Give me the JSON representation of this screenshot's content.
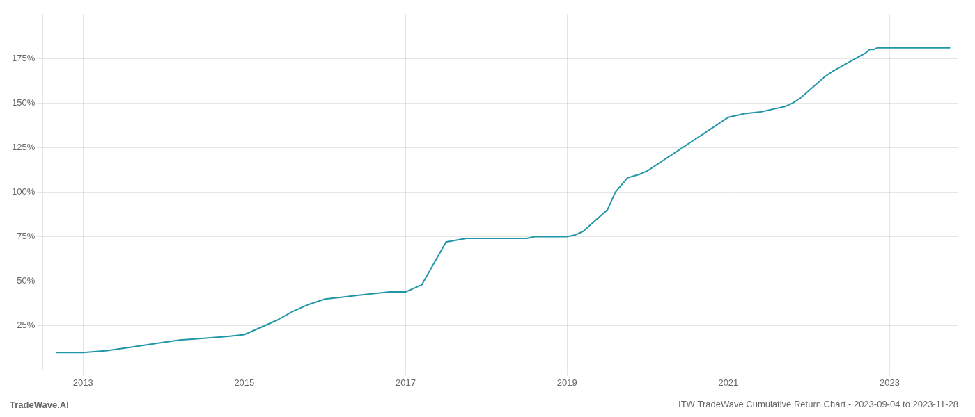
{
  "chart_data": {
    "type": "line",
    "title": "ITW TradeWave Cumulative Return Chart - 2023-09-04 to 2023-11-28",
    "annotations": [
      "TradeWave.AI"
    ],
    "x": [
      2012.67,
      2013.0,
      2013.3,
      2013.6,
      2013.9,
      2014.2,
      2014.5,
      2014.8,
      2015.0,
      2015.2,
      2015.4,
      2015.6,
      2015.8,
      2016.0,
      2016.2,
      2016.4,
      2016.6,
      2016.8,
      2016.85,
      2016.9,
      2017.0,
      2017.1,
      2017.2,
      2017.5,
      2017.75,
      2018.0,
      2018.25,
      2018.5,
      2018.6,
      2018.7,
      2018.8,
      2018.9,
      2019.0,
      2019.1,
      2019.2,
      2019.3,
      2019.4,
      2019.5,
      2019.6,
      2019.75,
      2019.9,
      2020.0,
      2020.2,
      2020.4,
      2020.6,
      2020.8,
      2021.0,
      2021.2,
      2021.4,
      2021.6,
      2021.7,
      2021.8,
      2021.9,
      2022.0,
      2022.1,
      2022.2,
      2022.3,
      2022.5,
      2022.7,
      2022.75,
      2022.8,
      2022.85,
      2022.9,
      2023.0,
      2023.2,
      2023.5,
      2023.75
    ],
    "values": [
      10,
      10,
      11,
      13,
      15,
      17,
      18,
      19,
      20,
      24,
      28,
      33,
      37,
      40,
      41,
      42,
      43,
      44,
      44,
      44,
      44,
      46,
      48,
      72,
      74,
      74,
      74,
      74,
      75,
      75,
      75,
      75,
      75,
      76,
      78,
      82,
      86,
      90,
      100,
      108,
      110,
      112,
      118,
      124,
      130,
      136,
      142,
      144,
      145,
      147,
      148,
      150,
      153,
      157,
      161,
      165,
      168,
      173,
      178,
      180,
      180,
      181,
      181,
      181,
      181,
      181,
      181
    ],
    "color": "#2196a8",
    "xlim": [
      2012.5,
      2023.85
    ],
    "xticks": [
      2013,
      2015,
      2017,
      2019,
      2021,
      2023
    ],
    "ylim": [
      0,
      200
    ],
    "yticks": [
      {
        "value": 25,
        "label": "25%"
      },
      {
        "value": 50,
        "label": "50%"
      },
      {
        "value": 75,
        "label": "75%"
      },
      {
        "value": 100,
        "label": "100%"
      },
      {
        "value": 125,
        "label": "125%"
      },
      {
        "value": 150,
        "label": "150%"
      },
      {
        "value": 175,
        "label": "175%"
      }
    ],
    "grid": true
  }
}
